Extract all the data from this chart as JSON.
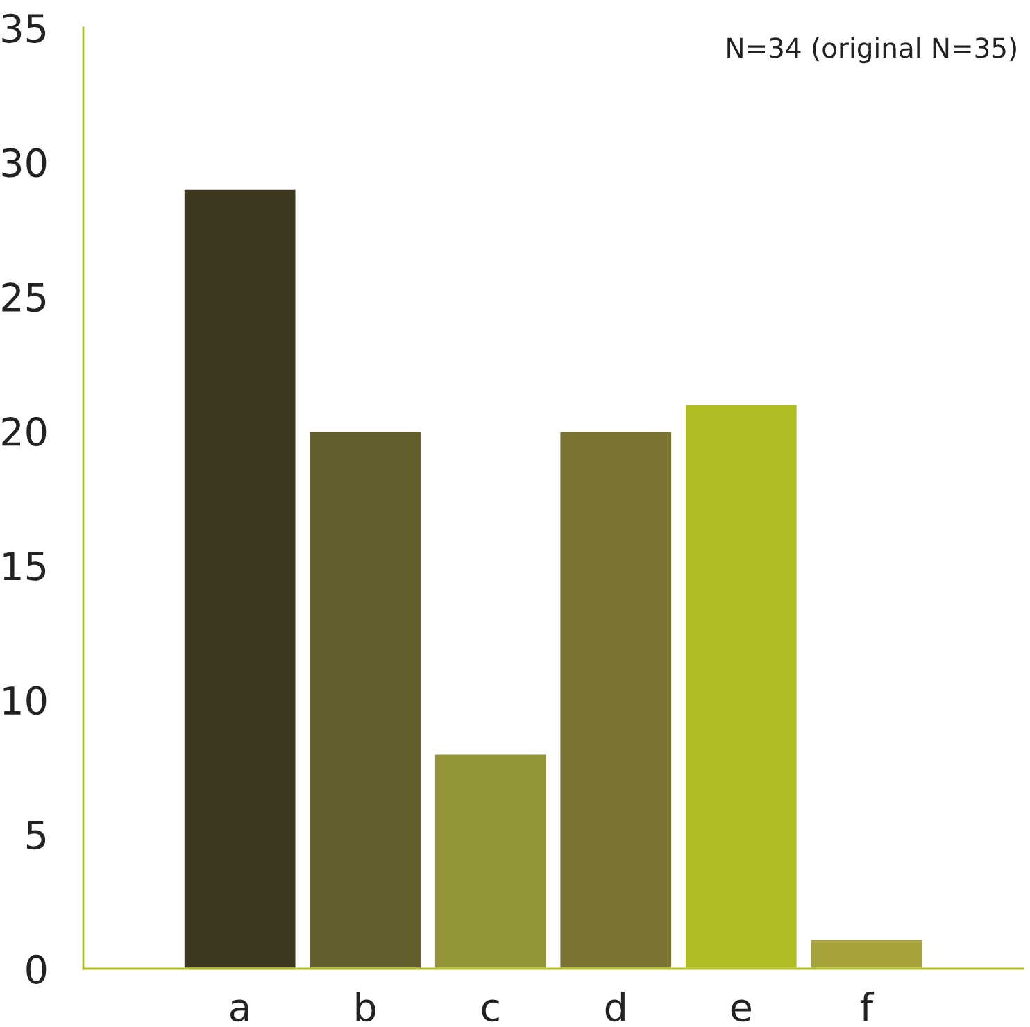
{
  "chart_data": {
    "type": "bar",
    "categories": [
      "a",
      "b",
      "c",
      "d",
      "e",
      "f"
    ],
    "values": [
      29,
      20,
      8,
      20,
      21,
      1.1
    ],
    "colors": [
      "#3d3720",
      "#635f2c",
      "#939338",
      "#7a7632",
      "#b0bd22",
      "#a6a33a"
    ],
    "ylim": [
      0,
      35
    ],
    "yticks": [
      0,
      5,
      10,
      15,
      20,
      25,
      30,
      35
    ],
    "grid": false,
    "annotations": [
      "N=34 (original N=35)"
    ]
  }
}
